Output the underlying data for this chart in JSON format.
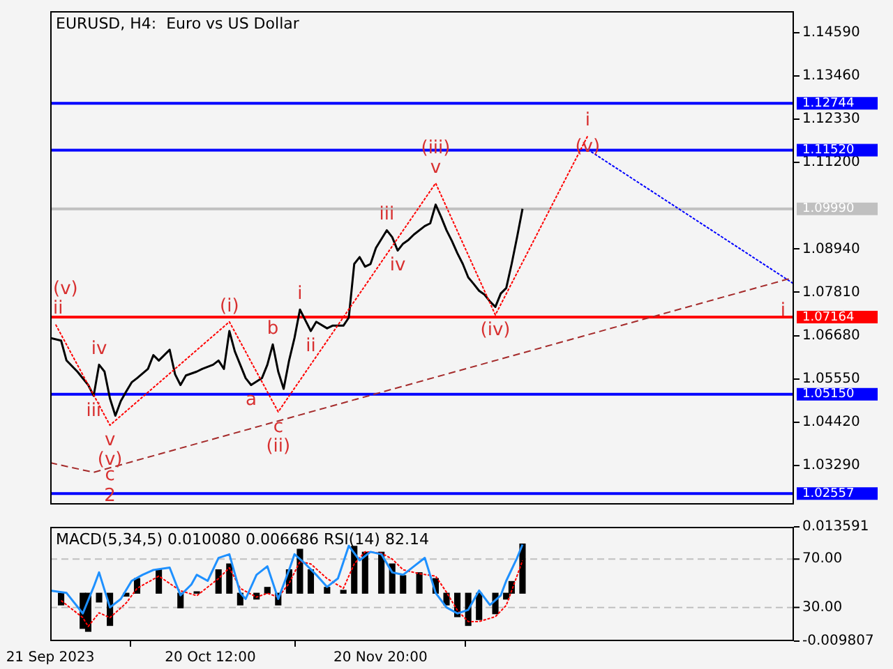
{
  "chart_data": [
    {
      "type": "line",
      "title": "EURUSD, H4:  Euro vs US Dollar",
      "tick_labels": "y",
      "xlim": [
        "2023-09-21",
        "2024-02-05"
      ],
      "ylim": [
        1.0227,
        1.1515
      ],
      "yticks": [
        {
          "value": 1.1459,
          "label": "1.14590"
        },
        {
          "value": 1.1346,
          "label": "1.13460"
        },
        {
          "value": 1.1233,
          "label": "1.12330"
        },
        {
          "value": 1.112,
          "label": "1.11200"
        },
        {
          "value": 1.0894,
          "label": "1.08940"
        },
        {
          "value": 1.0781,
          "label": "1.07810"
        },
        {
          "value": 1.0668,
          "label": "1.06680"
        },
        {
          "value": 1.0555,
          "label": "1.05550"
        },
        {
          "value": 1.0442,
          "label": "1.04420"
        },
        {
          "value": 1.0329,
          "label": "1.03290"
        }
      ],
      "series": [
        {
          "color": "#000000",
          "x": [
            "2023-09-21",
            "2023-09-23",
            "2023-09-24",
            "2023-09-26",
            "2023-09-28",
            "2023-09-29",
            "2023-09-30",
            "2023-10-01",
            "2023-10-02",
            "2023-10-03",
            "2023-10-04",
            "2023-10-05",
            "2023-10-06",
            "2023-10-07",
            "2023-10-09",
            "2023-10-10",
            "2023-10-11",
            "2023-10-13",
            "2023-10-14",
            "2023-10-15",
            "2023-10-16",
            "2023-10-18",
            "2023-10-19",
            "2023-10-21",
            "2023-10-22",
            "2023-10-23",
            "2023-10-24",
            "2023-10-25",
            "2023-10-26",
            "2023-10-27",
            "2023-10-28",
            "2023-10-30",
            "2023-10-31",
            "2023-11-01",
            "2023-11-02",
            "2023-11-03",
            "2023-11-04",
            "2023-11-05",
            "2023-11-06",
            "2023-11-07",
            "2023-11-08",
            "2023-11-09",
            "2023-11-11",
            "2023-11-12",
            "2023-11-14",
            "2023-11-15",
            "2023-11-16",
            "2023-11-17",
            "2023-11-18",
            "2023-11-19",
            "2023-11-20",
            "2023-11-22",
            "2023-11-23",
            "2023-11-24",
            "2023-11-25",
            "2023-11-26",
            "2023-11-27",
            "2023-11-29",
            "2023-11-30",
            "2023-12-01",
            "2023-12-02",
            "2023-12-03",
            "2023-12-04",
            "2023-12-05",
            "2023-12-06",
            "2023-12-07",
            "2023-12-08",
            "2023-12-09",
            "2023-12-10",
            "2023-12-11",
            "2023-12-12",
            "2023-12-13",
            "2023-12-14",
            "2023-12-15",
            "2023-12-16",
            "2023-12-17"
          ],
          "values": [
            1.0662,
            1.0655,
            1.0603,
            1.0574,
            1.0539,
            1.0511,
            1.0592,
            1.0574,
            1.0504,
            1.0459,
            1.0497,
            1.0522,
            1.0546,
            1.0557,
            1.0581,
            1.0617,
            1.0603,
            1.0631,
            1.0567,
            1.0539,
            1.0564,
            1.0574,
            1.0581,
            1.0592,
            1.0603,
            1.0581,
            1.068,
            1.0627,
            1.0592,
            1.0557,
            1.0539,
            1.0557,
            1.0592,
            1.0645,
            1.0574,
            1.0529,
            1.0603,
            1.0662,
            1.0736,
            1.0708,
            1.068,
            1.0704,
            1.0687,
            1.0694,
            1.0694,
            1.0715,
            1.0855,
            1.0873,
            1.0848,
            1.0855,
            1.0897,
            1.0943,
            1.0925,
            1.089,
            1.0908,
            1.0918,
            1.0932,
            1.0954,
            1.0961,
            1.101,
            1.0978,
            1.0943,
            1.0915,
            1.0883,
            1.0855,
            1.082,
            1.0803,
            1.0785,
            1.0775,
            1.0757,
            1.0743,
            1.0778,
            1.0792,
            1.0855,
            1.0925,
            1.0999
          ]
        },
        {
          "color": "#ff0000",
          "line_style": "dotted",
          "x": [
            "2023-09-22",
            "2023-10-02",
            "2023-10-24",
            "2023-11-02",
            "2023-12-01",
            "2023-12-12",
            "2023-12-29"
          ],
          "values": [
            1.0697,
            1.0434,
            1.0704,
            1.0469,
            1.1066,
            1.0722,
            1.1189
          ]
        },
        {
          "color": "#0000ff",
          "line_style": "dotted",
          "x": [
            "2023-12-29",
            "2024-02-05"
          ],
          "values": [
            1.1154,
            1.0803
          ]
        },
        {
          "color": "#a52a2a",
          "line_style": "dashed",
          "x": [
            "2023-09-21",
            "2023-09-29",
            "2024-02-05"
          ],
          "values": [
            1.0336,
            1.0311,
            1.082
          ]
        }
      ],
      "ref_lines": [
        {
          "axis": "y",
          "value": 1.12744,
          "label": "1.12744",
          "color": "#0000ff"
        },
        {
          "axis": "y",
          "value": 1.1152,
          "label": "1.11520",
          "color": "#0000ff"
        },
        {
          "axis": "y",
          "value": 1.0999,
          "label": "1.09990",
          "color": "#c0c0c0"
        },
        {
          "axis": "y",
          "value": 1.07164,
          "label": "1.07164",
          "color": "#ff0000"
        },
        {
          "axis": "y",
          "value": 1.0515,
          "label": "1.05150",
          "color": "#0000ff"
        },
        {
          "axis": "y",
          "value": 1.02557,
          "label": "1.02557",
          "color": "#0000ff"
        }
      ],
      "annotations": [
        {
          "text": "ii",
          "x": "2023-09-22",
          "y": 1.0697
        },
        {
          "text": "(v)",
          "x": "2023-09-22",
          "y": 1.0697
        },
        {
          "text": "iv",
          "x": "2023-09-30",
          "y": 1.0592
        },
        {
          "text": "iii",
          "x": "2023-09-29",
          "y": 1.0511
        },
        {
          "text": "v",
          "x": "2023-10-02",
          "y": 1.0434
        },
        {
          "text": "(v)",
          "x": "2023-10-02",
          "y": 1.0434
        },
        {
          "text": "c",
          "x": "2023-10-02",
          "y": 1.0303
        },
        {
          "text": "2",
          "x": "2023-10-02",
          "y": 1.0248
        },
        {
          "text": "(i)",
          "x": "2023-10-24",
          "y": 1.0704
        },
        {
          "text": "b",
          "x": "2023-11-01",
          "y": 1.0645
        },
        {
          "text": "i",
          "x": "2023-11-06",
          "y": 1.0736
        },
        {
          "text": "a",
          "x": "2023-10-28",
          "y": 1.0539
        },
        {
          "text": "c",
          "x": "2023-11-02",
          "y": 1.0469
        },
        {
          "text": "(ii)",
          "x": "2023-11-02",
          "y": 1.0469
        },
        {
          "text": "ii",
          "x": "2023-11-08",
          "y": 1.068
        },
        {
          "text": "iii",
          "x": "2023-11-22",
          "y": 1.0943
        },
        {
          "text": "iv",
          "x": "2023-11-24",
          "y": 1.089
        },
        {
          "text": "v",
          "x": "2023-12-01",
          "y": 1.1066
        },
        {
          "text": "(iii)",
          "x": "2023-12-01",
          "y": 1.1066
        },
        {
          "text": "(iv)",
          "x": "2023-12-12",
          "y": 1.0722
        },
        {
          "text": "(v)",
          "x": "2023-12-29",
          "y": 1.116
        },
        {
          "text": "i",
          "x": "2023-12-29",
          "y": 1.1189
        },
        {
          "text": "i",
          "x": "2024-02-03",
          "y": 1.0733
        }
      ]
    },
    {
      "type": "bar",
      "title": "MACD(5,34,5) 0.010080 0.006686 RSI(14) 82.14",
      "xlim": [
        "2023-09-21",
        "2024-02-05"
      ],
      "xticks": [
        {
          "value": "2023-09-21",
          "label": "21 Sep 2023"
        },
        {
          "value": "2023-10-20T12:00",
          "label": "20 Oct 12:00"
        },
        {
          "value": "2023-11-20T20:00",
          "label": "20 Nov 20:00"
        }
      ],
      "ylim": [
        -0.009807,
        0.013591
      ],
      "yticks": [
        {
          "value": 0.013591,
          "label": "0.013591"
        },
        {
          "value": -0.009807,
          "label": "-0.009807"
        }
      ],
      "y2lim": [
        2.1,
        96.7
      ],
      "y2ticks": [
        {
          "value": 70,
          "label": "70.00"
        },
        {
          "value": 30,
          "label": "30.00"
        }
      ],
      "series": [
        {
          "type": "bar",
          "color": "#000000",
          "x": [
            "2023-09-23",
            "2023-09-27",
            "2023-09-28",
            "2023-09-30",
            "2023-10-02",
            "2023-10-05",
            "2023-10-07",
            "2023-10-11",
            "2023-10-15",
            "2023-10-18",
            "2023-10-22",
            "2023-10-24",
            "2023-10-26",
            "2023-10-29",
            "2023-10-31",
            "2023-11-02",
            "2023-11-04",
            "2023-11-06",
            "2023-11-08",
            "2023-11-11",
            "2023-11-14",
            "2023-11-16",
            "2023-11-18",
            "2023-11-21",
            "2023-11-23",
            "2023-11-25",
            "2023-11-28",
            "2023-12-01",
            "2023-12-03",
            "2023-12-05",
            "2023-12-07",
            "2023-12-09",
            "2023-12-12",
            "2023-12-14",
            "2023-12-15",
            "2023-12-17"
          ],
          "values": [
            -0.0024,
            -0.0072,
            -0.0078,
            -0.0018,
            -0.0066,
            -0.0006,
            0.003,
            0.0048,
            -0.003,
            0.0003,
            0.0048,
            0.006,
            -0.0024,
            -0.0012,
            0.0012,
            -0.0024,
            0.0048,
            0.009,
            0.0048,
            0.0012,
            0.0006,
            0.0096,
            0.0084,
            0.0084,
            0.006,
            0.0036,
            0.0042,
            0.003,
            -0.0024,
            -0.0048,
            -0.0066,
            -0.0054,
            -0.0042,
            -0.0012,
            0.0024,
            0.01008
          ]
        },
        {
          "type": "line",
          "color": "#ff0000",
          "line_style": "dotted",
          "x": [
            "2023-09-23",
            "2023-09-27",
            "2023-09-28",
            "2023-09-30",
            "2023-10-02",
            "2023-10-05",
            "2023-10-07",
            "2023-10-11",
            "2023-10-15",
            "2023-10-18",
            "2023-10-22",
            "2023-10-24",
            "2023-10-26",
            "2023-10-29",
            "2023-10-31",
            "2023-11-02",
            "2023-11-04",
            "2023-11-06",
            "2023-11-08",
            "2023-11-11",
            "2023-11-14",
            "2023-11-16",
            "2023-11-18",
            "2023-11-21",
            "2023-11-23",
            "2023-11-25",
            "2023-11-28",
            "2023-12-01",
            "2023-12-03",
            "2023-12-05",
            "2023-12-07",
            "2023-12-09",
            "2023-12-12",
            "2023-12-14",
            "2023-12-15",
            "2023-12-17"
          ],
          "values": [
            -0.0015,
            -0.005,
            -0.0068,
            -0.004,
            -0.005,
            -0.002,
            0.001,
            0.0035,
            0.0005,
            -0.0005,
            0.003,
            0.0052,
            0.001,
            -0.0008,
            0,
            -0.0008,
            0.002,
            0.0065,
            0.006,
            0.003,
            0.001,
            0.006,
            0.0085,
            0.0082,
            0.007,
            0.0048,
            0.004,
            0.0035,
            0.0002,
            -0.0035,
            -0.0058,
            -0.0058,
            -0.0048,
            -0.0025,
            0.0005,
            0.006686
          ]
        },
        {
          "type": "line",
          "axis": "y2",
          "color": "#1e90ff",
          "x": [
            "2023-09-21",
            "2023-09-24",
            "2023-09-27",
            "2023-09-29",
            "2023-09-30",
            "2023-10-02",
            "2023-10-04",
            "2023-10-06",
            "2023-10-08",
            "2023-10-10",
            "2023-10-13",
            "2023-10-15",
            "2023-10-17",
            "2023-10-18",
            "2023-10-20",
            "2023-10-22",
            "2023-10-24",
            "2023-10-26",
            "2023-10-27",
            "2023-10-29",
            "2023-10-31",
            "2023-11-02",
            "2023-11-04",
            "2023-11-05",
            "2023-11-07",
            "2023-11-09",
            "2023-11-11",
            "2023-11-13",
            "2023-11-15",
            "2023-11-17",
            "2023-11-19",
            "2023-11-21",
            "2023-11-23",
            "2023-11-25",
            "2023-11-27",
            "2023-11-29",
            "2023-12-01",
            "2023-12-03",
            "2023-12-05",
            "2023-12-07",
            "2023-12-09",
            "2023-12-11",
            "2023-12-13",
            "2023-12-14",
            "2023-12-16",
            "2023-12-17"
          ],
          "values": [
            44,
            42,
            25,
            47,
            59,
            30,
            37,
            52,
            57,
            61,
            63,
            40,
            49,
            57,
            52,
            71,
            74,
            42,
            37,
            57,
            64,
            37,
            61,
            74,
            66,
            57,
            47,
            54,
            81,
            69,
            76,
            74,
            59,
            57,
            64,
            71,
            42,
            30,
            25,
            28,
            44,
            32,
            40,
            52,
            71,
            82
          ]
        }
      ],
      "ref_lines": [
        {
          "axis": "y2",
          "value": 70,
          "color": "#c0c0c0",
          "line_style": "dashed"
        },
        {
          "axis": "y2",
          "value": 30,
          "color": "#c0c0c0",
          "line_style": "dashed"
        }
      ]
    }
  ]
}
